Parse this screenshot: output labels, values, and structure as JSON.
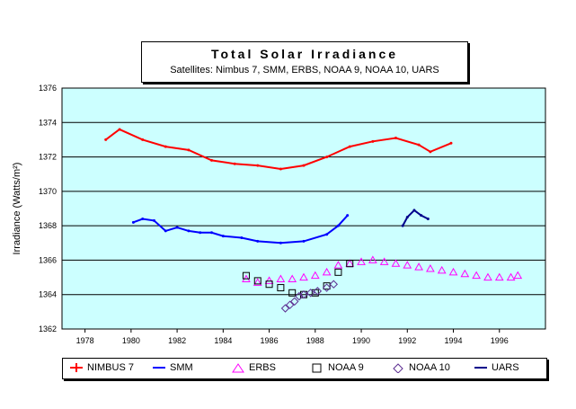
{
  "chart_data": {
    "type": "scatter",
    "title": "Total Solar Irradiance",
    "subtitle": "Satellites:  Nimbus 7, SMM, ERBS, NOAA 9, NOAA 10, UARS",
    "xlabel": "",
    "ylabel": "Irradiance (Watts/m²)",
    "xlim": [
      1977,
      1998
    ],
    "ylim": [
      1362,
      1376
    ],
    "xticks": [
      "1978",
      "1980",
      "1982",
      "1984",
      "1986",
      "1988",
      "1990",
      "1992",
      "1994",
      "1996"
    ],
    "yticks": [
      "1362",
      "1364",
      "1366",
      "1368",
      "1370",
      "1372",
      "1374",
      "1376"
    ],
    "grid": true,
    "legend_position": "bottom",
    "series": [
      {
        "name": "NIMBUS 7",
        "color": "#ff0000",
        "marker": "line",
        "x": [
          1978.9,
          1979.5,
          1980.5,
          1981.5,
          1982.5,
          1983.5,
          1984.5,
          1985.5,
          1986.5,
          1987.5,
          1988.5,
          1989.5,
          1990.5,
          1991.5,
          1992.5,
          1993.0,
          1993.9
        ],
        "y": [
          1373.0,
          1373.6,
          1373.0,
          1372.6,
          1372.4,
          1371.8,
          1371.6,
          1371.5,
          1371.3,
          1371.5,
          1372.0,
          1372.6,
          1372.9,
          1373.1,
          1372.7,
          1372.3,
          1372.8
        ]
      },
      {
        "name": "SMM",
        "color": "#0000ff",
        "marker": "line",
        "x": [
          1980.1,
          1980.5,
          1981.0,
          1981.5,
          1982.0,
          1982.5,
          1983.0,
          1983.5,
          1984.0,
          1984.8,
          1985.5,
          1986.5,
          1987.5,
          1988.5,
          1989.0,
          1989.4
        ],
        "y": [
          1368.2,
          1368.4,
          1368.3,
          1367.7,
          1367.9,
          1367.7,
          1367.6,
          1367.6,
          1367.4,
          1367.3,
          1367.1,
          1367.0,
          1367.1,
          1367.5,
          1368.0,
          1368.6
        ]
      },
      {
        "name": "ERBS",
        "color": "#ff00ff",
        "marker": "triangle",
        "x": [
          1985.0,
          1985.5,
          1986.0,
          1986.5,
          1987.0,
          1987.5,
          1988.0,
          1988.5,
          1989.0,
          1989.5,
          1990.0,
          1990.5,
          1991.0,
          1991.5,
          1992.0,
          1992.5,
          1993.0,
          1993.5,
          1994.0,
          1994.5,
          1995.0,
          1995.5,
          1996.0,
          1996.5,
          1996.8
        ],
        "y": [
          1364.9,
          1364.7,
          1364.8,
          1364.9,
          1364.9,
          1365.0,
          1365.1,
          1365.3,
          1365.7,
          1365.8,
          1365.9,
          1366.0,
          1365.9,
          1365.8,
          1365.7,
          1365.6,
          1365.5,
          1365.4,
          1365.3,
          1365.2,
          1365.1,
          1365.0,
          1365.0,
          1365.0,
          1365.1
        ]
      },
      {
        "name": "NOAA 9",
        "color": "#000000",
        "marker": "square",
        "x": [
          1985.0,
          1985.5,
          1986.0,
          1986.5,
          1987.0,
          1987.5,
          1988.0,
          1988.5,
          1989.0,
          1989.5
        ],
        "y": [
          1365.1,
          1364.8,
          1364.6,
          1364.4,
          1364.1,
          1364.0,
          1364.1,
          1364.5,
          1365.3,
          1365.8
        ]
      },
      {
        "name": "NOAA 10",
        "color": "#5c2d91",
        "marker": "diamond",
        "x": [
          1986.7,
          1986.9,
          1987.1,
          1987.3,
          1987.5,
          1987.8,
          1988.1,
          1988.5,
          1988.8
        ],
        "y": [
          1363.2,
          1363.4,
          1363.6,
          1363.9,
          1364.0,
          1364.1,
          1364.2,
          1364.4,
          1364.6
        ]
      },
      {
        "name": "UARS",
        "color": "#00008b",
        "marker": "line",
        "x": [
          1991.8,
          1992.0,
          1992.3,
          1992.6,
          1992.9
        ],
        "y": [
          1368.0,
          1368.5,
          1368.9,
          1368.6,
          1368.4
        ]
      }
    ]
  }
}
